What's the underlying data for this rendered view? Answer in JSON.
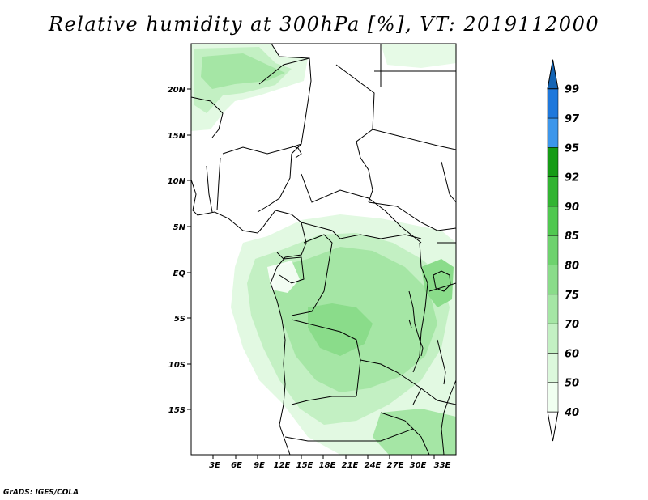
{
  "title": "Relative humidity at 300hPa [%], VT: 2019112000",
  "credit": "GrADS: IGES/COLA",
  "map": {
    "lon_range": [
      0,
      36
    ],
    "lat_range": [
      -20,
      25
    ],
    "lat_ticks": [
      "20N",
      "15N",
      "10N",
      "5N",
      "EQ",
      "5S",
      "10S",
      "15S"
    ],
    "lon_ticks": [
      "3E",
      "6E",
      "9E",
      "12E",
      "15E",
      "18E",
      "21E",
      "24E",
      "27E",
      "30E",
      "33E"
    ]
  },
  "colorbar": {
    "levels": [
      "40",
      "50",
      "60",
      "70",
      "75",
      "80",
      "85",
      "90",
      "92",
      "95",
      "97",
      "99"
    ],
    "colors": [
      "#f0fff0",
      "#dcf8dc",
      "#c3f0c3",
      "#a5e6a5",
      "#8adc8a",
      "#6ed26e",
      "#50c850",
      "#32b432",
      "#169b16",
      "#3c96eb",
      "#1e78dc",
      "#1464b4"
    ]
  }
}
